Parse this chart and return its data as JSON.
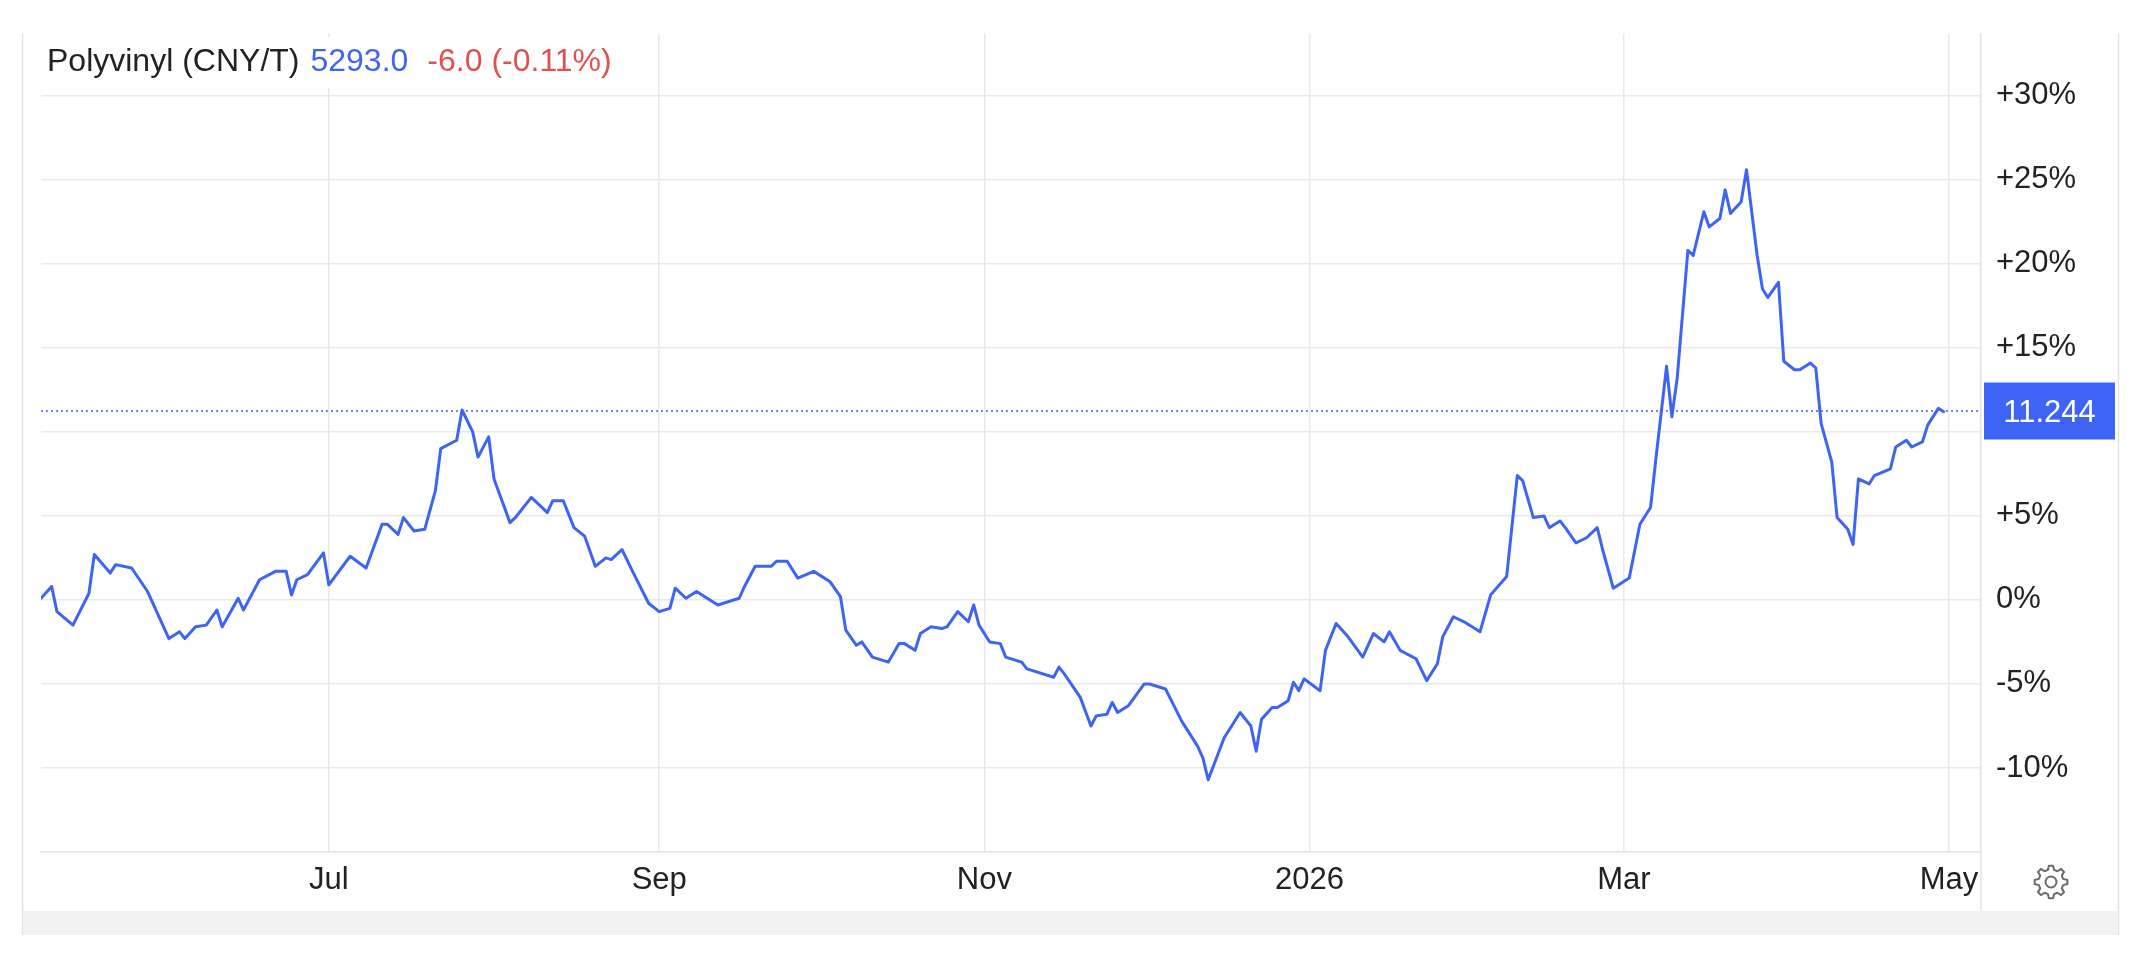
{
  "chart_data": {
    "type": "line",
    "title": "Polyvinyl (CNY/T)",
    "annotations": [
      "5293.0",
      "-6.0 (-0.11%)"
    ],
    "x": [
      "2025-05-08",
      "2025-05-10",
      "2025-05-11",
      "2025-05-14",
      "2025-05-17",
      "2025-05-18",
      "2025-05-21",
      "2025-05-22",
      "2025-05-25",
      "2025-05-28",
      "2025-06-01",
      "2025-06-03",
      "2025-06-04",
      "2025-06-06",
      "2025-06-08",
      "2025-06-10",
      "2025-06-11",
      "2025-06-14",
      "2025-06-15",
      "2025-06-18",
      "2025-06-21",
      "2025-06-23",
      "2025-06-24",
      "2025-06-25",
      "2025-06-27",
      "2025-06-30",
      "2025-07-01",
      "2025-07-05",
      "2025-07-08",
      "2025-07-11",
      "2025-07-12",
      "2025-07-14",
      "2025-07-15",
      "2025-07-17",
      "2025-07-19",
      "2025-07-21",
      "2025-07-22",
      "2025-07-25",
      "2025-07-26",
      "2025-07-28",
      "2025-07-29",
      "2025-07-31",
      "2025-08-01",
      "2025-08-04",
      "2025-08-05",
      "2025-08-08",
      "2025-08-11",
      "2025-08-12",
      "2025-08-14",
      "2025-08-16",
      "2025-08-18",
      "2025-08-20",
      "2025-08-22",
      "2025-08-23",
      "2025-08-25",
      "2025-08-27",
      "2025-08-30",
      "2025-09-01",
      "2025-09-03",
      "2025-09-04",
      "2025-09-06",
      "2025-09-08",
      "2025-09-12",
      "2025-09-16",
      "2025-09-17",
      "2025-09-19",
      "2025-09-22",
      "2025-09-23",
      "2025-09-25",
      "2025-09-27",
      "2025-09-30",
      "2025-10-03",
      "2025-10-05",
      "2025-10-06",
      "2025-10-08",
      "2025-10-09",
      "2025-10-11",
      "2025-10-14",
      "2025-10-16",
      "2025-10-17",
      "2025-10-19",
      "2025-10-20",
      "2025-10-22",
      "2025-10-24",
      "2025-10-25",
      "2025-10-27",
      "2025-10-29",
      "2025-10-30",
      "2025-10-31",
      "2025-11-02",
      "2025-11-04",
      "2025-11-05",
      "2025-11-08",
      "2025-11-09",
      "2025-11-14",
      "2025-11-15",
      "2025-11-16",
      "2025-11-19",
      "2025-11-21",
      "2025-11-22",
      "2025-11-24",
      "2025-11-25",
      "2025-11-26",
      "2025-11-28",
      "2025-12-01",
      "2025-12-02",
      "2025-12-05",
      "2025-12-08",
      "2025-12-11",
      "2025-12-12",
      "2025-12-13",
      "2025-12-16",
      "2025-12-19",
      "2025-12-21",
      "2025-12-22",
      "2025-12-23",
      "2025-12-25",
      "2025-12-26",
      "2025-12-28",
      "2025-12-29",
      "2025-12-30",
      "2025-12-31",
      "2026-01-03",
      "2026-01-04",
      "2026-01-06",
      "2026-01-08",
      "2026-01-11",
      "2026-01-13",
      "2026-01-15",
      "2026-01-16",
      "2026-01-18",
      "2026-01-21",
      "2026-01-23",
      "2026-01-25",
      "2026-01-26",
      "2026-01-28",
      "2026-01-30",
      "2026-02-02",
      "2026-02-04",
      "2026-02-07",
      "2026-02-09",
      "2026-02-10",
      "2026-02-12",
      "2026-02-14",
      "2026-02-15",
      "2026-02-17",
      "2026-02-18",
      "2026-02-20",
      "2026-02-22",
      "2026-02-24",
      "2026-02-25",
      "2026-02-27",
      "2026-03-02",
      "2026-03-04",
      "2026-03-06",
      "2026-03-07",
      "2026-03-09",
      "2026-03-10",
      "2026-03-11",
      "2026-03-13",
      "2026-03-14",
      "2026-03-16",
      "2026-03-17",
      "2026-03-19",
      "2026-03-20",
      "2026-03-21",
      "2026-03-23",
      "2026-03-24",
      "2026-03-26",
      "2026-03-27",
      "2026-03-28",
      "2026-03-30",
      "2026-03-31",
      "2026-04-02",
      "2026-04-03",
      "2026-04-05",
      "2026-04-06",
      "2026-04-07",
      "2026-04-09",
      "2026-04-10",
      "2026-04-12",
      "2026-04-13",
      "2026-04-14",
      "2026-04-16",
      "2026-04-17",
      "2026-04-20",
      "2026-04-21",
      "2026-04-23",
      "2026-04-24",
      "2026-04-26",
      "2026-04-27",
      "2026-04-29",
      "2026-04-30"
    ],
    "values": [
      0.1,
      0.8,
      -0.7,
      -1.5,
      0.4,
      2.7,
      1.6,
      2.1,
      1.9,
      0.5,
      -2.3,
      -1.9,
      -2.3,
      -1.6,
      -1.5,
      -0.6,
      -1.6,
      0.1,
      -0.6,
      1.2,
      1.7,
      1.7,
      0.3,
      1.2,
      1.5,
      2.8,
      0.9,
      2.6,
      1.9,
      4.5,
      4.5,
      3.9,
      4.9,
      4.1,
      4.2,
      6.5,
      9.0,
      9.5,
      11.3,
      10.0,
      8.5,
      9.7,
      7.2,
      4.6,
      4.9,
      6.1,
      5.2,
      5.9,
      5.9,
      4.3,
      3.8,
      2.0,
      2.5,
      2.4,
      3.0,
      1.7,
      -0.2,
      -0.7,
      -0.5,
      0.7,
      0.1,
      0.5,
      -0.3,
      0.1,
      0.8,
      2.0,
      2.0,
      2.3,
      2.3,
      1.3,
      1.7,
      1.1,
      0.2,
      -1.8,
      -2.7,
      -2.5,
      -3.4,
      -3.7,
      -2.6,
      -2.6,
      -3.0,
      -2.0,
      -1.6,
      -1.7,
      -1.6,
      -0.7,
      -1.3,
      -0.3,
      -1.5,
      -2.5,
      -2.6,
      -3.4,
      -3.7,
      -4.1,
      -4.6,
      -4.0,
      -4.4,
      -5.8,
      -7.5,
      -6.9,
      -6.8,
      -6.1,
      -6.7,
      -6.3,
      -5.0,
      -5.0,
      -5.3,
      -7.2,
      -8.7,
      -9.4,
      -10.7,
      -8.2,
      -6.7,
      -7.5,
      -9.0,
      -7.1,
      -6.4,
      -6.4,
      -6.0,
      -4.9,
      -5.4,
      -4.7,
      -5.4,
      -3.0,
      -1.4,
      -2.1,
      -3.4,
      -2.0,
      -2.5,
      -1.9,
      -3.0,
      -3.5,
      -4.8,
      -3.8,
      -2.2,
      -1.0,
      -1.3,
      -1.9,
      0.3,
      1.4,
      7.4,
      7.1,
      4.9,
      5.0,
      4.3,
      4.7,
      4.3,
      3.4,
      3.7,
      4.3,
      3.0,
      0.7,
      1.3,
      4.5,
      5.5,
      8.4,
      13.9,
      10.9,
      13.2,
      20.8,
      20.5,
      23.1,
      22.2,
      22.7,
      24.4,
      23.0,
      23.7,
      25.6,
      20.5,
      18.5,
      18.0,
      18.9,
      14.2,
      13.7,
      13.7,
      14.1,
      13.8,
      10.5,
      8.2,
      4.9,
      4.2,
      3.3,
      7.2,
      6.9,
      7.4,
      7.8,
      9.1,
      9.5,
      9.1,
      9.4,
      10.4,
      11.4,
      11.2
    ],
    "color": "#3d64f4",
    "xlim": [
      "2025-05-08",
      "2026-05-07"
    ],
    "xticks": [
      {
        "value": "2025-07-01",
        "label": "Jul"
      },
      {
        "value": "2025-09-01",
        "label": "Sep"
      },
      {
        "value": "2025-11-01",
        "label": "Nov"
      },
      {
        "value": "2026-01-01",
        "label": "2026"
      },
      {
        "value": "2026-03-01",
        "label": "Mar"
      },
      {
        "value": "2026-05-01",
        "label": "May"
      }
    ],
    "ylim": [
      -15,
      33.7
    ],
    "yticks": [
      {
        "value": -10,
        "label": "-10%"
      },
      {
        "value": -5,
        "label": "-5%"
      },
      {
        "value": 0,
        "label": "0%"
      },
      {
        "value": 5,
        "label": "+5%"
      },
      {
        "value": 10,
        "label": null
      },
      {
        "value": 15,
        "label": "+15%"
      },
      {
        "value": 20,
        "label": "+20%"
      },
      {
        "value": 25,
        "label": "+25%"
      },
      {
        "value": 30,
        "label": "+30%"
      }
    ],
    "grid": true,
    "ref_lines": [
      {
        "axis": "y",
        "value": 11.244,
        "label": "11.244",
        "color": "#3d64f4",
        "line_style": "dotted"
      }
    ]
  }
}
